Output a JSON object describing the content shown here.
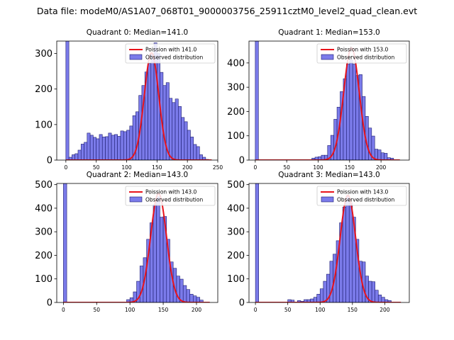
{
  "figure": {
    "suptitle": "Data file: modeM0/AS1A07_068T01_9000003756_25911cztM0_level2_quad_clean.evt",
    "colors": {
      "bar_fill": "#7b7bea",
      "bar_edge": "#1c1c6e",
      "curve": "#e8131b",
      "axis": "#000000"
    }
  },
  "chart_data": [
    {
      "type": "bar",
      "title": "Quadrant 0: Median=141.0",
      "xlim": [
        -15,
        250
      ],
      "ylim": [
        0,
        335
      ],
      "xticks": [
        0,
        50,
        100,
        150,
        200,
        250
      ],
      "yticks": [
        0,
        100,
        200,
        300
      ],
      "bin_width": 5,
      "bins": [
        [
          0,
          335
        ],
        [
          5,
          8
        ],
        [
          10,
          15
        ],
        [
          15,
          18
        ],
        [
          20,
          28
        ],
        [
          25,
          45
        ],
        [
          30,
          50
        ],
        [
          35,
          76
        ],
        [
          40,
          70
        ],
        [
          45,
          64
        ],
        [
          50,
          60
        ],
        [
          55,
          72
        ],
        [
          60,
          65
        ],
        [
          65,
          66
        ],
        [
          70,
          76
        ],
        [
          75,
          70
        ],
        [
          80,
          72
        ],
        [
          85,
          67
        ],
        [
          90,
          82
        ],
        [
          95,
          80
        ],
        [
          100,
          84
        ],
        [
          105,
          96
        ],
        [
          110,
          125
        ],
        [
          115,
          136
        ],
        [
          120,
          182
        ],
        [
          125,
          210
        ],
        [
          130,
          248
        ],
        [
          135,
          272
        ],
        [
          140,
          298
        ],
        [
          145,
          330
        ],
        [
          150,
          300
        ],
        [
          155,
          247
        ],
        [
          160,
          210
        ],
        [
          165,
          218
        ],
        [
          170,
          174
        ],
        [
          175,
          162
        ],
        [
          180,
          172
        ],
        [
          185,
          151
        ],
        [
          190,
          120
        ],
        [
          195,
          108
        ],
        [
          200,
          84
        ],
        [
          205,
          65
        ],
        [
          210,
          44
        ],
        [
          215,
          38
        ],
        [
          220,
          15
        ],
        [
          225,
          8
        ],
        [
          230,
          2
        ]
      ],
      "curve": {
        "mean": 141,
        "peak": 302,
        "xmin": 0,
        "xmax": 240
      },
      "legend": {
        "curve_label": "Poission with 141.0",
        "bar_label": "Observed distribution",
        "loc": "upper right"
      }
    },
    {
      "type": "bar",
      "title": "Quadrant 1: Median=153.0",
      "xlim": [
        -10,
        245
      ],
      "ylim": [
        0,
        490
      ],
      "xticks": [
        0,
        50,
        100,
        150,
        200
      ],
      "yticks": [
        0,
        100,
        200,
        300,
        400
      ],
      "bin_width": 5,
      "bins": [
        [
          0,
          490
        ],
        [
          90,
          8
        ],
        [
          95,
          12
        ],
        [
          100,
          14
        ],
        [
          105,
          20
        ],
        [
          110,
          20
        ],
        [
          115,
          60
        ],
        [
          120,
          102
        ],
        [
          125,
          168
        ],
        [
          130,
          218
        ],
        [
          135,
          282
        ],
        [
          140,
          335
        ],
        [
          145,
          395
        ],
        [
          150,
          412
        ],
        [
          155,
          395
        ],
        [
          160,
          348
        ],
        [
          165,
          352
        ],
        [
          170,
          262
        ],
        [
          175,
          180
        ],
        [
          180,
          132
        ],
        [
          185,
          99
        ],
        [
          190,
          45
        ],
        [
          195,
          42
        ],
        [
          200,
          30
        ],
        [
          205,
          28
        ],
        [
          210,
          10
        ],
        [
          215,
          8
        ]
      ],
      "curve": {
        "mean": 153,
        "peak": 462,
        "xmin": 0,
        "xmax": 230
      },
      "legend": {
        "curve_label": "Poission with 153.0",
        "bar_label": "Observed distribution",
        "loc": "upper right"
      }
    },
    {
      "type": "bar",
      "title": "Quadrant 2: Median=143.0",
      "xlim": [
        -10,
        232
      ],
      "ylim": [
        0,
        505
      ],
      "xticks": [
        0,
        50,
        100,
        150,
        200
      ],
      "yticks": [
        0,
        100,
        200,
        300,
        400,
        500
      ],
      "bin_width": 5,
      "bins": [
        [
          0,
          505
        ],
        [
          95,
          12
        ],
        [
          100,
          20
        ],
        [
          105,
          45
        ],
        [
          110,
          90
        ],
        [
          115,
          155
        ],
        [
          120,
          190
        ],
        [
          125,
          268
        ],
        [
          130,
          338
        ],
        [
          135,
          415
        ],
        [
          140,
          448
        ],
        [
          145,
          362
        ],
        [
          150,
          365
        ],
        [
          155,
          268
        ],
        [
          160,
          172
        ],
        [
          165,
          145
        ],
        [
          170,
          112
        ],
        [
          175,
          99
        ],
        [
          180,
          72
        ],
        [
          185,
          55
        ],
        [
          190,
          35
        ],
        [
          195,
          28
        ],
        [
          200,
          22
        ],
        [
          205,
          10
        ]
      ],
      "curve": {
        "mean": 143,
        "peak": 462,
        "xmin": 0,
        "xmax": 220
      },
      "legend": {
        "curve_label": "Poission with 143.0",
        "bar_label": "Observed distribution",
        "loc": "upper right"
      }
    },
    {
      "type": "bar",
      "title": "Quadrant 3: Median=143.0",
      "xlim": [
        -10,
        238
      ],
      "ylim": [
        0,
        505
      ],
      "xticks": [
        0,
        50,
        100,
        150,
        200
      ],
      "yticks": [
        0,
        100,
        200,
        300,
        400,
        500
      ],
      "bin_width": 5,
      "bins": [
        [
          0,
          505
        ],
        [
          50,
          12
        ],
        [
          55,
          10
        ],
        [
          65,
          8
        ],
        [
          70,
          5
        ],
        [
          75,
          12
        ],
        [
          80,
          12
        ],
        [
          85,
          15
        ],
        [
          90,
          22
        ],
        [
          95,
          35
        ],
        [
          100,
          58
        ],
        [
          105,
          90
        ],
        [
          110,
          120
        ],
        [
          115,
          175
        ],
        [
          120,
          205
        ],
        [
          125,
          262
        ],
        [
          130,
          338
        ],
        [
          135,
          405
        ],
        [
          140,
          448
        ],
        [
          145,
          422
        ],
        [
          150,
          362
        ],
        [
          155,
          268
        ],
        [
          160,
          175
        ],
        [
          165,
          172
        ],
        [
          170,
          112
        ],
        [
          175,
          90
        ],
        [
          180,
          88
        ],
        [
          185,
          52
        ],
        [
          190,
          32
        ],
        [
          195,
          22
        ],
        [
          200,
          12
        ],
        [
          205,
          8
        ]
      ],
      "curve": {
        "mean": 143,
        "peak": 455,
        "xmin": 0,
        "xmax": 225
      },
      "legend": {
        "curve_label": "Poission with 143.0",
        "bar_label": "Observed distribution",
        "loc": "upper right"
      }
    }
  ]
}
